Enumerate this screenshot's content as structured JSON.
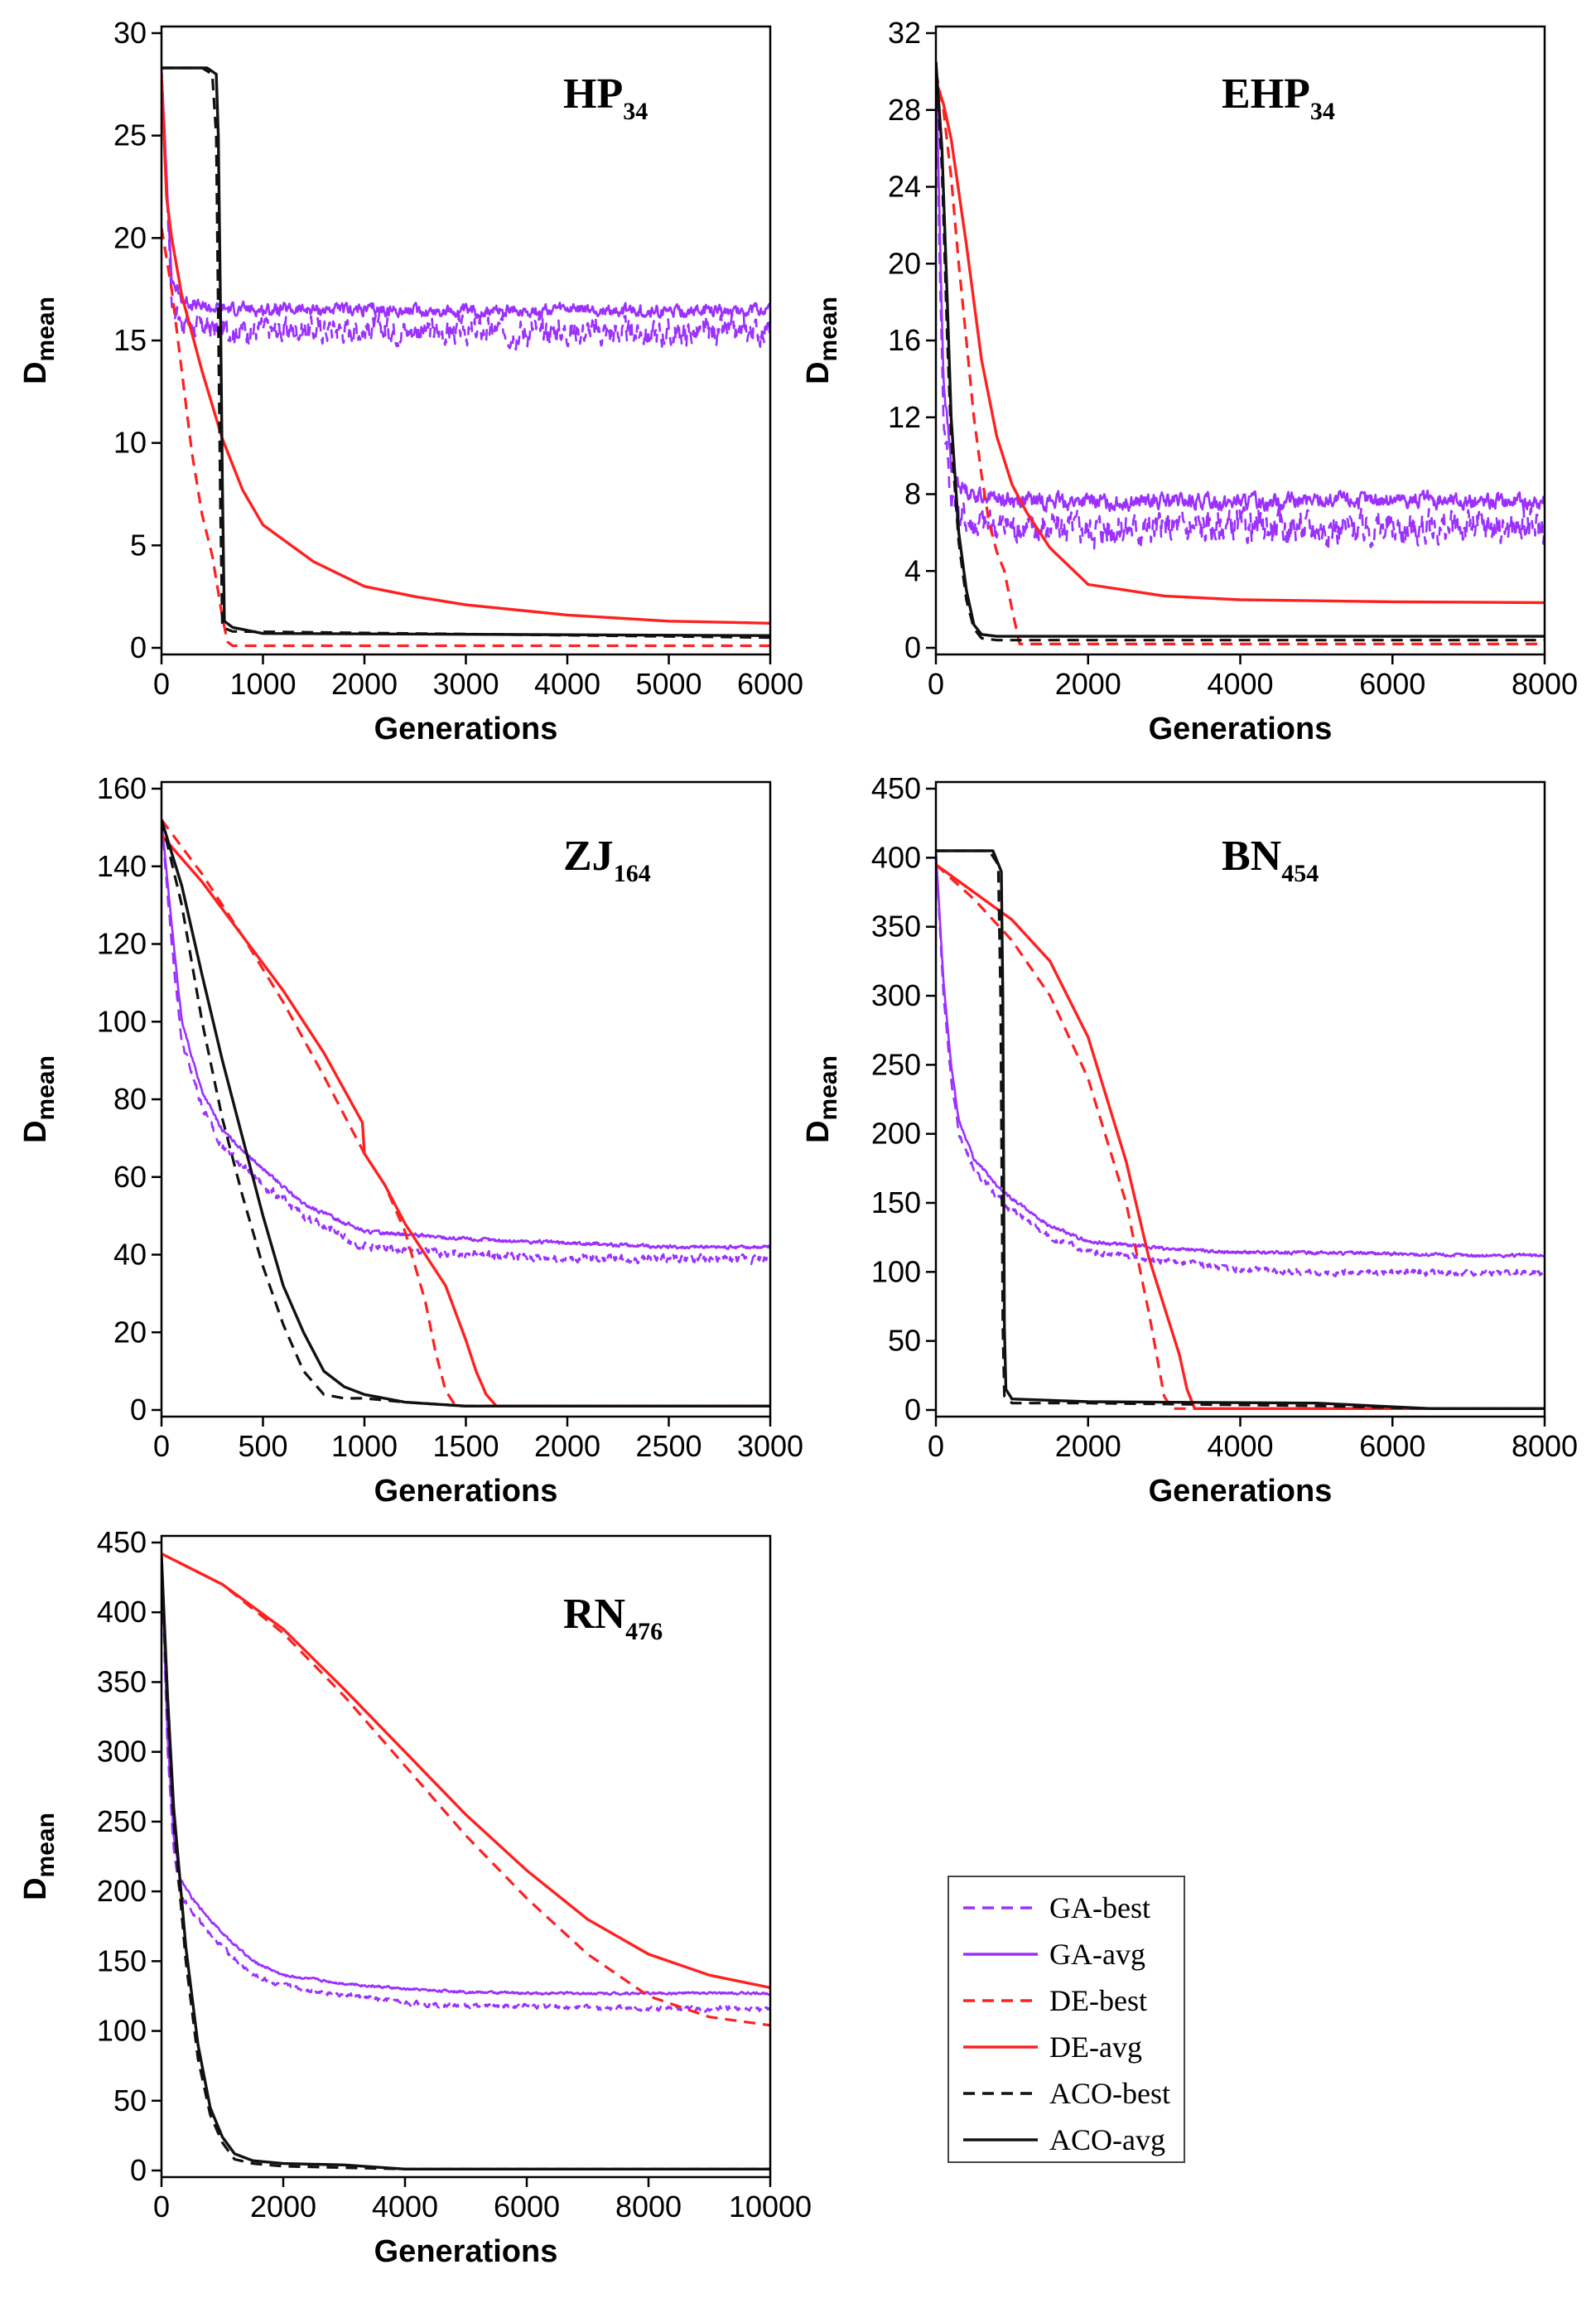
{
  "colors": {
    "GA": "#9b30ff",
    "DE": "#ff2020",
    "ACO": "#111111"
  },
  "legend": [
    {
      "label": "GA-best",
      "series": "GA",
      "style": "dashed"
    },
    {
      "label": "GA-avg",
      "series": "GA",
      "style": "solid"
    },
    {
      "label": "DE-best",
      "series": "DE",
      "style": "dashed"
    },
    {
      "label": "DE-avg",
      "series": "DE",
      "style": "solid"
    },
    {
      "label": "ACO-best",
      "series": "ACO",
      "style": "dashed"
    },
    {
      "label": "ACO-avg",
      "series": "ACO",
      "style": "solid"
    }
  ],
  "chart_data": [
    {
      "type": "line",
      "id": "hp34",
      "title_main": "HP",
      "title_sub": "34",
      "xlabel": "Generations",
      "ylabel_main": "D",
      "ylabel_sub": "mean",
      "xlim": [
        0,
        6000
      ],
      "ylim": [
        0,
        30
      ],
      "xticks": [
        0,
        1000,
        2000,
        3000,
        4000,
        5000,
        6000
      ],
      "yticks": [
        0,
        5,
        10,
        15,
        20,
        25,
        30
      ],
      "series": [
        {
          "name": "GA-best",
          "x": [
            0,
            100,
            200,
            400,
            1000,
            2000,
            3000,
            4000,
            5000,
            6000
          ],
          "y": [
            28.3,
            17,
            16,
            15.6,
            15.5,
            15.6,
            15.4,
            15.5,
            15.3,
            15.5
          ],
          "noise": 1.1
        },
        {
          "name": "GA-avg",
          "x": [
            0,
            100,
            200,
            400,
            1000,
            2000,
            3000,
            4000,
            5000,
            6000
          ],
          "y": [
            28.3,
            18,
            17,
            16.6,
            16.5,
            16.5,
            16.4,
            16.5,
            16.4,
            16.5
          ],
          "noise": 0.5
        },
        {
          "name": "DE-best",
          "x": [
            0,
            100,
            200,
            300,
            400,
            500,
            600,
            650,
            700,
            6000
          ],
          "y": [
            20.5,
            17.5,
            13.5,
            9.5,
            6.5,
            4.5,
            1.5,
            0.3,
            0.1,
            0.1
          ]
        },
        {
          "name": "DE-avg",
          "x": [
            0,
            50,
            100,
            200,
            400,
            600,
            800,
            1000,
            1500,
            2000,
            2500,
            3000,
            4000,
            5000,
            6000
          ],
          "y": [
            28,
            22,
            20,
            17.2,
            13.5,
            10.2,
            7.7,
            6,
            4.2,
            3,
            2.5,
            2.1,
            1.6,
            1.3,
            1.2
          ]
        },
        {
          "name": "ACO-best",
          "x": [
            0,
            400,
            500,
            540,
            560,
            580,
            600,
            700,
            6000
          ],
          "y": [
            28.3,
            28.3,
            28,
            25,
            16,
            7,
            1,
            0.8,
            0.5
          ]
        },
        {
          "name": "ACO-avg",
          "x": [
            0,
            450,
            540,
            560,
            580,
            600,
            620,
            700,
            1000,
            6000
          ],
          "y": [
            28.3,
            28.3,
            28,
            25,
            17,
            8,
            1.3,
            1.0,
            0.7,
            0.6
          ]
        }
      ]
    },
    {
      "type": "line",
      "id": "ehp34",
      "title_main": "EHP",
      "title_sub": "34",
      "xlabel": "Generations",
      "ylabel_main": "D",
      "ylabel_sub": "mean",
      "xlim": [
        0,
        8000
      ],
      "ylim": [
        0,
        32
      ],
      "xticks": [
        0,
        2000,
        4000,
        6000,
        8000
      ],
      "yticks": [
        0,
        4,
        8,
        12,
        16,
        20,
        24,
        28,
        32
      ],
      "series": [
        {
          "name": "GA-best",
          "x": [
            0,
            50,
            100,
            200,
            300,
            500,
            1000,
            2000,
            4000,
            6000,
            8000
          ],
          "y": [
            30.5,
            20,
            12,
            8,
            7,
            6.5,
            6.3,
            6.2,
            6.3,
            6.2,
            6.3
          ],
          "noise": 1.5
        },
        {
          "name": "GA-avg",
          "x": [
            0,
            50,
            100,
            200,
            300,
            500,
            1000,
            2000,
            4000,
            6000,
            8000
          ],
          "y": [
            30.5,
            22,
            14,
            9.5,
            8.5,
            8,
            7.7,
            7.6,
            7.6,
            7.7,
            7.6
          ],
          "noise": 0.7
        },
        {
          "name": "DE-best",
          "x": [
            0,
            100,
            200,
            300,
            400,
            500,
            600,
            700,
            800,
            900,
            1000,
            1100,
            8000
          ],
          "y": [
            30,
            28,
            24.5,
            20,
            16,
            12,
            9,
            6.5,
            5,
            4,
            2,
            0.2,
            0.2
          ]
        },
        {
          "name": "DE-avg",
          "x": [
            0,
            100,
            200,
            400,
            600,
            800,
            1000,
            1200,
            1500,
            2000,
            3000,
            4000,
            5000,
            6000,
            8000
          ],
          "y": [
            29.5,
            28.3,
            26.5,
            21,
            15,
            11,
            8.5,
            7,
            5.2,
            3.3,
            2.7,
            2.5,
            2.45,
            2.4,
            2.35
          ]
        },
        {
          "name": "ACO-best",
          "x": [
            0,
            80,
            150,
            200,
            300,
            400,
            500,
            600,
            800,
            8000
          ],
          "y": [
            30.5,
            25,
            16,
            11,
            5.5,
            2.5,
            1,
            0.5,
            0.4,
            0.4
          ]
        },
        {
          "name": "ACO-avg",
          "x": [
            0,
            80,
            150,
            200,
            300,
            400,
            500,
            600,
            800,
            8000
          ],
          "y": [
            30.5,
            26,
            18,
            12,
            6,
            3,
            1.2,
            0.7,
            0.6,
            0.6
          ]
        }
      ]
    },
    {
      "type": "line",
      "id": "zj164",
      "title_main": "ZJ",
      "title_sub": "164",
      "xlabel": "Generations",
      "ylabel_main": "D",
      "ylabel_sub": "mean",
      "xlim": [
        0,
        3000
      ],
      "ylim": [
        0,
        160
      ],
      "xticks": [
        0,
        500,
        1000,
        1500,
        2000,
        2500,
        3000
      ],
      "yticks": [
        0,
        20,
        40,
        60,
        80,
        100,
        120,
        140,
        160
      ],
      "series": [
        {
          "name": "GA-best",
          "x": [
            0,
            50,
            100,
            200,
            300,
            500,
            700,
            1000,
            1500,
            2000,
            2500,
            3000
          ],
          "y": [
            152,
            120,
            95,
            78,
            68,
            58,
            50,
            42,
            40,
            39,
            39,
            39
          ],
          "noise": 1.8
        },
        {
          "name": "GA-avg",
          "x": [
            0,
            50,
            100,
            200,
            300,
            500,
            700,
            1000,
            1500,
            2000,
            2500,
            3000
          ],
          "y": [
            152,
            125,
            100,
            82,
            72,
            62,
            53,
            46,
            44,
            43,
            42,
            42
          ],
          "noise": 0.8
        },
        {
          "name": "DE-best",
          "x": [
            0,
            200,
            400,
            600,
            800,
            1000,
            1100,
            1200,
            1300,
            1350,
            1400,
            1450,
            3000
          ],
          "y": [
            152,
            138,
            122,
            105,
            86,
            66,
            58,
            46,
            28,
            15,
            5,
            1,
            1
          ]
        },
        {
          "name": "DE-avg",
          "x": [
            0,
            200,
            400,
            600,
            800,
            990,
            1000,
            1100,
            1200,
            1300,
            1400,
            1500,
            1550,
            1600,
            1650,
            3000
          ],
          "y": [
            148,
            136,
            122,
            108,
            92,
            74,
            66,
            58,
            48,
            40,
            32,
            18,
            10,
            4,
            1,
            1
          ]
        },
        {
          "name": "ACO-best",
          "x": [
            0,
            100,
            200,
            300,
            400,
            500,
            600,
            700,
            800,
            900,
            1000,
            1200,
            1500,
            3000
          ],
          "y": [
            152,
            130,
            100,
            75,
            55,
            37,
            22,
            10,
            4,
            3,
            3,
            2,
            1,
            1
          ]
        },
        {
          "name": "ACO-avg",
          "x": [
            0,
            100,
            200,
            300,
            400,
            500,
            600,
            700,
            800,
            900,
            1000,
            1200,
            1500,
            3000
          ],
          "y": [
            152,
            135,
            112,
            90,
            70,
            50,
            32,
            20,
            10,
            6,
            4,
            2,
            1,
            1
          ]
        }
      ]
    },
    {
      "type": "line",
      "id": "bn454",
      "title_main": "BN",
      "title_sub": "454",
      "xlabel": "Generations",
      "ylabel_main": "D",
      "ylabel_sub": "mean",
      "xlim": [
        0,
        8000
      ],
      "ylim": [
        0,
        450
      ],
      "xticks": [
        0,
        2000,
        4000,
        6000,
        8000
      ],
      "yticks": [
        0,
        50,
        100,
        150,
        200,
        250,
        300,
        350,
        400,
        450
      ],
      "series": [
        {
          "name": "GA-best",
          "x": [
            0,
            100,
            200,
            300,
            500,
            800,
            1000,
            1500,
            2000,
            3000,
            4000,
            5000,
            6000,
            7000,
            8000
          ],
          "y": [
            405,
            300,
            240,
            200,
            175,
            155,
            145,
            125,
            115,
            108,
            102,
            100,
            100,
            99,
            99
          ],
          "noise": 4
        },
        {
          "name": "GA-avg",
          "x": [
            0,
            100,
            200,
            300,
            500,
            800,
            1000,
            1500,
            2000,
            3000,
            4000,
            5000,
            6000,
            7000,
            8000
          ],
          "y": [
            405,
            310,
            250,
            210,
            182,
            163,
            153,
            133,
            122,
            117,
            114,
            114,
            113,
            112,
            112
          ],
          "noise": 2
        },
        {
          "name": "DE-best",
          "x": [
            0,
            500,
            1000,
            1500,
            2000,
            2500,
            2800,
            3000,
            3100,
            8000
          ],
          "y": [
            395,
            370,
            340,
            300,
            240,
            150,
            70,
            10,
            1,
            1
          ]
        },
        {
          "name": "DE-avg",
          "x": [
            0,
            500,
            1000,
            1500,
            2000,
            2500,
            2800,
            3000,
            3200,
            3300,
            3400,
            8000
          ],
          "y": [
            395,
            375,
            355,
            325,
            270,
            180,
            110,
            75,
            40,
            15,
            1,
            1
          ]
        },
        {
          "name": "ACO-best",
          "x": [
            0,
            700,
            820,
            850,
            880,
            900,
            1000,
            2000,
            5000,
            6500,
            8000
          ],
          "y": [
            405,
            405,
            395,
            300,
            60,
            10,
            5,
            5,
            3,
            1,
            1
          ]
        },
        {
          "name": "ACO-avg",
          "x": [
            0,
            750,
            860,
            880,
            900,
            920,
            1000,
            2000,
            5000,
            6500,
            8000
          ],
          "y": [
            405,
            405,
            390,
            300,
            60,
            15,
            8,
            6,
            5,
            1,
            1
          ]
        }
      ]
    },
    {
      "type": "line",
      "id": "rn476",
      "title_main": "RN",
      "title_sub": "476",
      "xlabel": "Generations",
      "ylabel_main": "D",
      "ylabel_sub": "mean",
      "xlim": [
        0,
        10000
      ],
      "ylim": [
        0,
        450
      ],
      "xticks": [
        0,
        2000,
        4000,
        6000,
        8000,
        10000
      ],
      "yticks": [
        0,
        50,
        100,
        150,
        200,
        250,
        300,
        350,
        400,
        450
      ],
      "series": [
        {
          "name": "GA-best",
          "x": [
            0,
            100,
            200,
            300,
            500,
            1000,
            1500,
            2000,
            3000,
            4000,
            5000,
            6000,
            7000,
            8000,
            9000,
            10000
          ],
          "y": [
            440,
            300,
            230,
            200,
            185,
            160,
            140,
            132,
            126,
            120,
            118,
            118,
            117,
            116,
            116,
            116
          ],
          "noise": 3
        },
        {
          "name": "GA-avg",
          "x": [
            0,
            100,
            200,
            300,
            500,
            1000,
            1500,
            2000,
            3000,
            4000,
            5000,
            6000,
            7000,
            8000,
            9000,
            10000
          ],
          "y": [
            440,
            310,
            240,
            210,
            195,
            170,
            150,
            140,
            134,
            130,
            128,
            127,
            127,
            127,
            127,
            127
          ],
          "noise": 1.5
        },
        {
          "name": "DE-best",
          "x": [
            0,
            1000,
            2000,
            3000,
            4000,
            5000,
            6000,
            7000,
            8000,
            9000,
            10000
          ],
          "y": [
            442,
            420,
            385,
            340,
            290,
            240,
            195,
            155,
            125,
            110,
            104
          ]
        },
        {
          "name": "DE-avg",
          "x": [
            0,
            1000,
            2000,
            3000,
            4000,
            5000,
            6000,
            7000,
            8000,
            9000,
            10000
          ],
          "y": [
            442,
            420,
            388,
            345,
            300,
            255,
            215,
            180,
            155,
            140,
            131
          ]
        },
        {
          "name": "ACO-best",
          "x": [
            0,
            100,
            200,
            400,
            600,
            800,
            1000,
            1200,
            1500,
            2000,
            4000,
            10000
          ],
          "y": [
            440,
            330,
            250,
            150,
            80,
            40,
            20,
            8,
            5,
            3,
            1,
            1
          ]
        },
        {
          "name": "ACO-avg",
          "x": [
            0,
            100,
            200,
            400,
            600,
            800,
            1000,
            1200,
            1500,
            2000,
            3000,
            4000,
            10000
          ],
          "y": [
            440,
            340,
            260,
            160,
            90,
            45,
            24,
            12,
            7,
            5,
            4,
            1,
            1
          ]
        }
      ]
    }
  ]
}
